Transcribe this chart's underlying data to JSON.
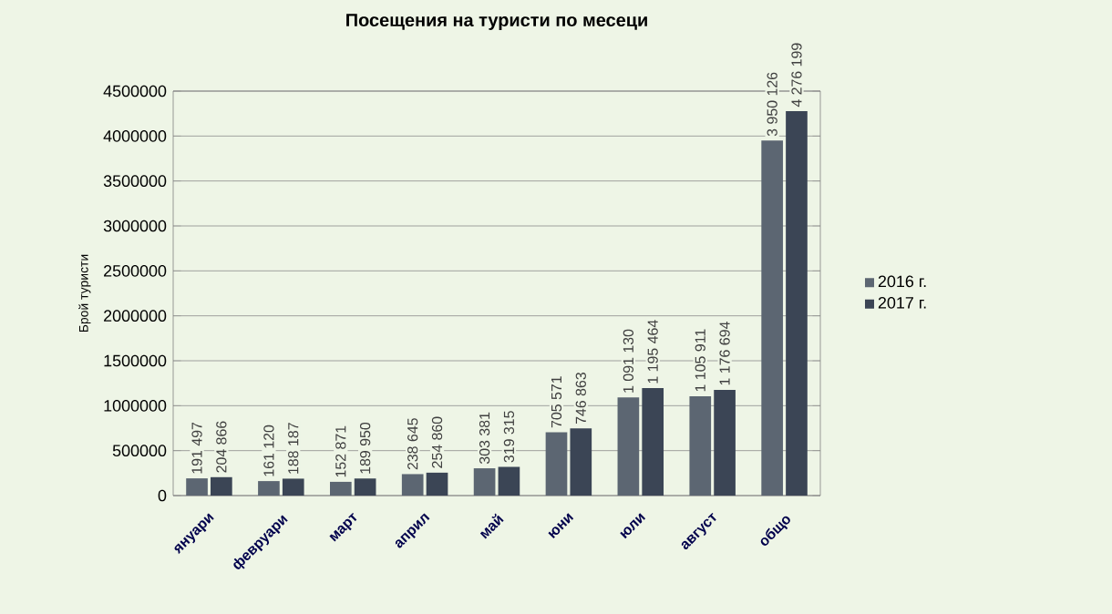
{
  "chart_data": {
    "type": "bar",
    "title": "Посещения на туристи по месеци",
    "ylabel": "Брой туристи",
    "categories": [
      "януари",
      "февруари",
      "март",
      "април",
      "май",
      "юни",
      "юли",
      "август",
      "общо"
    ],
    "series": [
      {
        "name": "2016 г.",
        "color": "#5c6672",
        "values": [
          191497,
          161120,
          152871,
          238645,
          303381,
          705571,
          1091130,
          1105911,
          3950126
        ],
        "value_labels": [
          "191 497",
          "161 120",
          "152 871",
          "238 645",
          "303 381",
          "705 571",
          "1 091 130",
          "1 105 911",
          "3 950 126"
        ]
      },
      {
        "name": "2017 г.",
        "color": "#3b4555",
        "values": [
          204866,
          188187,
          189950,
          254860,
          319315,
          746863,
          1195464,
          1176694,
          4276199
        ],
        "value_labels": [
          "204 866",
          "188 187",
          "189 950",
          "254 860",
          "319 315",
          "746 863",
          "1 195 464",
          "1 176 694",
          "4 276 199"
        ]
      }
    ],
    "ylim": [
      0,
      4500000
    ],
    "yticks": [
      0,
      500000,
      1000000,
      1500000,
      2000000,
      2500000,
      3000000,
      3500000,
      4000000,
      4500000
    ],
    "grid": "y",
    "legend": "right"
  }
}
